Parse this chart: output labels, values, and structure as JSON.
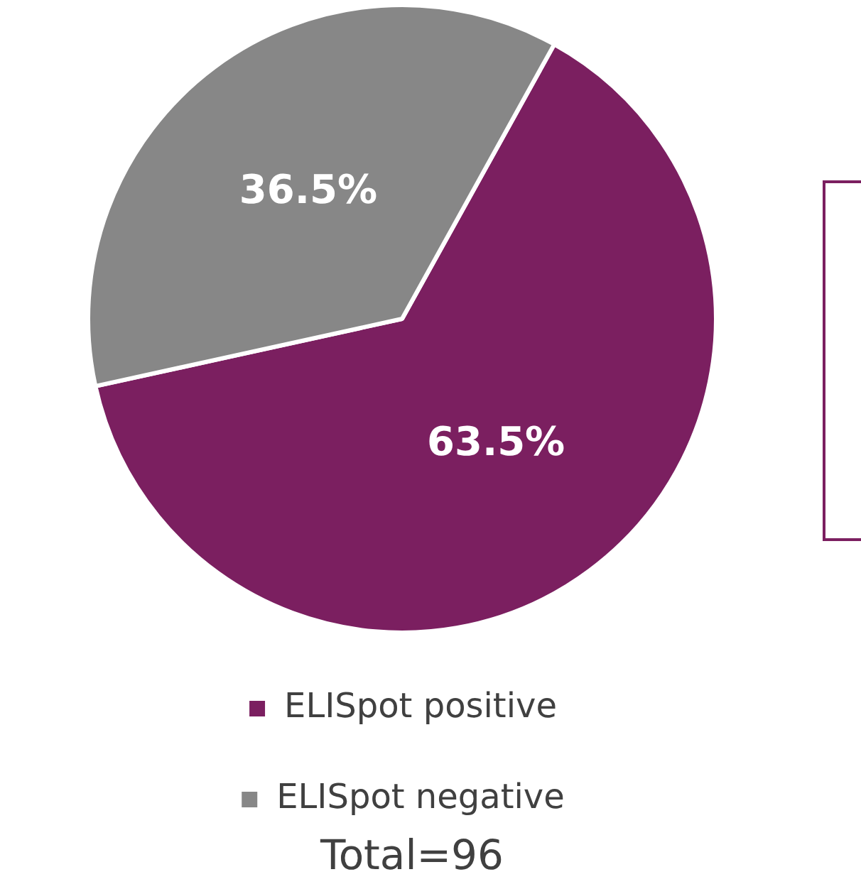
{
  "chart_data": {
    "type": "pie",
    "categories": [
      "ELISpot positive",
      "ELISpot negative"
    ],
    "values": [
      63.5,
      36.5
    ],
    "colors": [
      "#7b1f60",
      "#878787"
    ],
    "data_labels": true,
    "value_labels": [
      "63.5%",
      "36.5%"
    ],
    "legend": "bottom",
    "annotations": [
      "Total=96"
    ]
  }
}
